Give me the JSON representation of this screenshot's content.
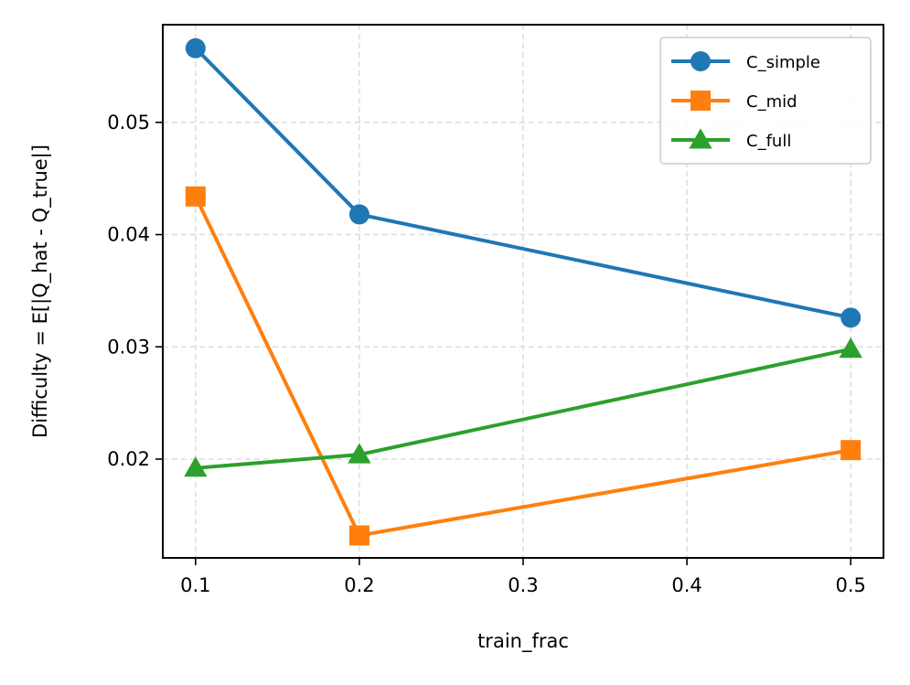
{
  "chart_data": {
    "type": "line",
    "title": "",
    "xlabel": "train_frac",
    "ylabel": "Difficulty = E[|Q_hat - Q_true|]",
    "x": [
      0.1,
      0.2,
      0.5
    ],
    "xlim": [
      0.08,
      0.52
    ],
    "ylim": [
      0.0112,
      0.0587
    ],
    "xticks": [
      0.1,
      0.2,
      0.3,
      0.4,
      0.5
    ],
    "xtick_labels": [
      "0.1",
      "0.2",
      "0.3",
      "0.4",
      "0.5"
    ],
    "yticks": [
      0.02,
      0.03,
      0.04,
      0.05
    ],
    "ytick_labels": [
      "0.02",
      "0.03",
      "0.04",
      "0.05"
    ],
    "grid": true,
    "legend_position": "top-right",
    "series": [
      {
        "name": "C_simple",
        "values": [
          0.0566,
          0.0418,
          0.0326
        ],
        "color": "#1f77b4",
        "marker": "circle"
      },
      {
        "name": "C_mid",
        "values": [
          0.0434,
          0.0132,
          0.0208
        ],
        "color": "#ff7f0e",
        "marker": "square"
      },
      {
        "name": "C_full",
        "values": [
          0.0192,
          0.0204,
          0.0298
        ],
        "color": "#2ca02c",
        "marker": "triangle"
      }
    ]
  }
}
